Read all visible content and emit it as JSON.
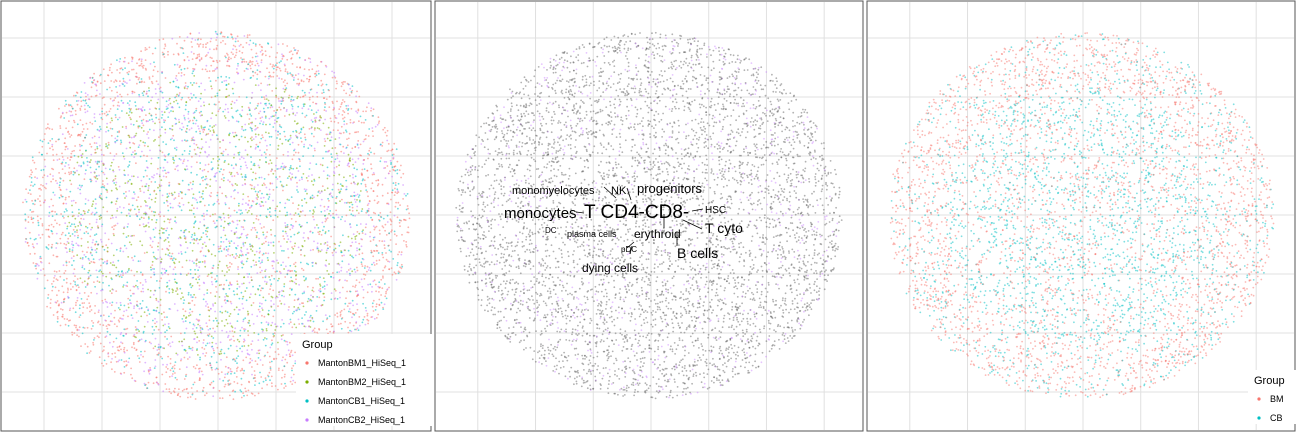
{
  "panels": [
    {
      "chart_data": {
        "type": "scatter",
        "description_legend_title": "Group",
        "legend": {
          "title": "Group",
          "placement": "bottom-right",
          "entries": [
            {
              "label": "MantonBM1_HiSeq_1",
              "color": "#F8766D"
            },
            {
              "label": "MantonBM2_HiSeq_1",
              "color": "#7CAE00"
            },
            {
              "label": "MantonCB1_HiSeq_1",
              "color": "#00BFC4"
            },
            {
              "label": "MantonCB2_HiSeq_1",
              "color": "#C77CFF"
            }
          ]
        },
        "grid": true
      }
    },
    {
      "chart_data": {
        "type": "scatter",
        "grid": true,
        "point_color": "#555555",
        "accent_color": "#C77CFF",
        "labels": [
          {
            "text": "monomyelocytes",
            "size": "medium"
          },
          {
            "text": "NK",
            "size": "medium"
          },
          {
            "text": "progenitors",
            "size": "medium-large"
          },
          {
            "text": "monocytes",
            "size": "large"
          },
          {
            "text": "T CD4-CD8-",
            "size": "xlarge"
          },
          {
            "text": "HSC",
            "size": "small"
          },
          {
            "text": "T cyto",
            "size": "large"
          },
          {
            "text": "DC",
            "size": "small"
          },
          {
            "text": "plasma cells",
            "size": "small"
          },
          {
            "text": "erythroid",
            "size": "medium-large"
          },
          {
            "text": "pDC",
            "size": "xsmall"
          },
          {
            "text": "B cells",
            "size": "large"
          },
          {
            "text": "dying cells",
            "size": "medium"
          }
        ]
      }
    },
    {
      "chart_data": {
        "type": "scatter",
        "grid": true,
        "legend": {
          "title": "Group",
          "placement": "bottom-right",
          "entries": [
            {
              "label": "BM",
              "color": "#F8766D"
            },
            {
              "label": "CB",
              "color": "#00BFC4"
            }
          ]
        }
      }
    }
  ]
}
